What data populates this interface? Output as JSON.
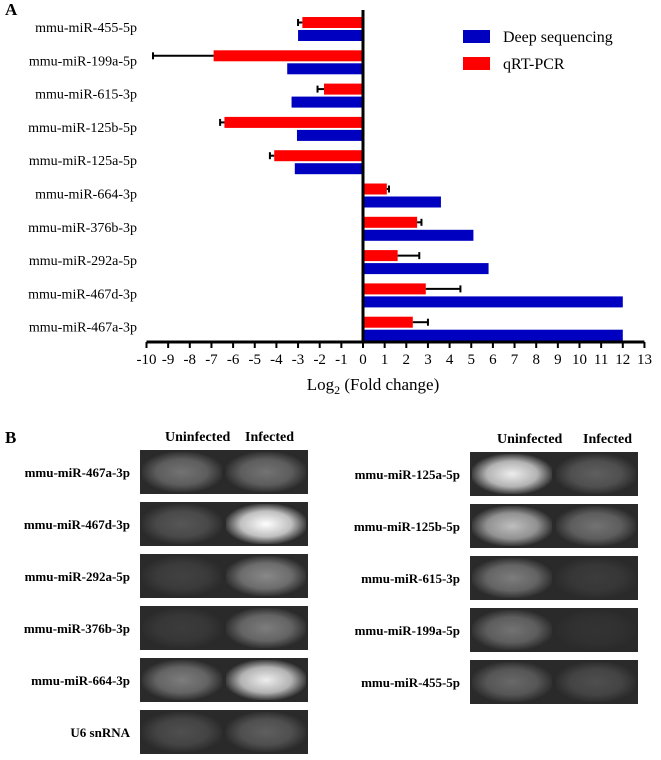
{
  "panel_a_label": "A",
  "panel_b_label": "B",
  "chart_data": {
    "type": "bar",
    "orientation": "horizontal",
    "categories": [
      "mmu-miR-455-5p",
      "mmu-miR-199a-5p",
      "mmu-miR-615-3p",
      "mmu-miR-125b-5p",
      "mmu-miR-125a-5p",
      "mmu-miR-664-3p",
      "mmu-miR-376b-3p",
      "mmu-miR-292a-5p",
      "mmu-miR-467d-3p",
      "mmu-miR-467a-3p"
    ],
    "series": [
      {
        "name": "Deep sequencing",
        "color": "#0000c0",
        "values": [
          -3.0,
          -3.5,
          -3.3,
          -3.05,
          -3.15,
          3.6,
          5.1,
          5.8,
          12,
          12
        ]
      },
      {
        "name": "qRT-PCR",
        "color": "#ff0000",
        "values": [
          -2.8,
          -6.9,
          -1.8,
          -6.4,
          -4.1,
          1.1,
          2.5,
          1.6,
          2.9,
          2.3
        ],
        "error": [
          0.2,
          2.8,
          0.3,
          0.2,
          0.2,
          0.1,
          0.2,
          1.0,
          1.6,
          0.7
        ]
      }
    ],
    "xlabel": "Log",
    "xlabel_sub": "2",
    "xlabel_rest": " (Fold change)",
    "xlim": [
      -10,
      13
    ],
    "xticks": [
      -10,
      -9,
      -8,
      -7,
      -6,
      -5,
      -4,
      -3,
      -2,
      -1,
      0,
      1,
      2,
      3,
      4,
      5,
      6,
      7,
      8,
      9,
      10,
      11,
      12,
      13
    ],
    "legend": "top-right"
  },
  "gels": {
    "col_uninfected": "Uninfected",
    "col_infected": "Infected",
    "left": [
      {
        "label": "mmu-miR-467a-3p",
        "uninfected": 0.5,
        "infected": 0.5
      },
      {
        "label": "mmu-miR-467d-3p",
        "uninfected": 0.35,
        "infected": 1.0
      },
      {
        "label": "mmu-miR-292a-5p",
        "uninfected": 0.2,
        "infected": 0.6
      },
      {
        "label": "mmu-miR-376b-3p",
        "uninfected": 0.15,
        "infected": 0.55
      },
      {
        "label": "mmu-miR-664-3p",
        "uninfected": 0.55,
        "infected": 0.95
      },
      {
        "label": "U6 snRNA",
        "uninfected": 0.3,
        "infected": 0.4
      }
    ],
    "right": [
      {
        "label": "mmu-miR-125a-5p",
        "uninfected": 0.95,
        "infected": 0.4
      },
      {
        "label": "mmu-miR-125b-5p",
        "uninfected": 0.8,
        "infected": 0.5
      },
      {
        "label": "mmu-miR-615-3p",
        "uninfected": 0.55,
        "infected": 0.15
      },
      {
        "label": "mmu-miR-199a-5p",
        "uninfected": 0.5,
        "infected": 0.05
      },
      {
        "label": "mmu-miR-455-5p",
        "uninfected": 0.45,
        "infected": 0.3
      }
    ]
  }
}
